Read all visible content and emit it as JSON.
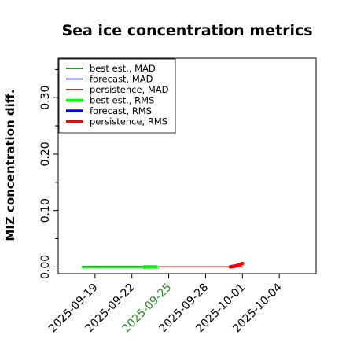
{
  "chart_data": {
    "type": "line",
    "title": "Sea ice concentration metrics",
    "ylabel": "MIZ concentration diff.",
    "xlabel": "",
    "xlim": [
      "2025-09-16",
      "2025-10-07"
    ],
    "ylim": [
      -0.012,
      0.37
    ],
    "y_ticks": [
      0.0,
      0.1,
      0.2,
      0.3
    ],
    "y_tick_labels": [
      "0.00",
      "0.10",
      "0.20",
      "0.30"
    ],
    "y_minor_ticks": [
      0.05,
      0.15,
      0.25,
      0.35
    ],
    "x_ticks": [
      "2025-09-19",
      "2025-09-22",
      "2025-09-25",
      "2025-09-28",
      "2025-10-01",
      "2025-10-04"
    ],
    "x_tick_colors": [
      "#000000",
      "#000000",
      "#228B22",
      "#000000",
      "#000000",
      "#000000"
    ],
    "grid": false,
    "legend_position": "top-left",
    "series": [
      {
        "name": "best est., MAD",
        "color": "#006400",
        "width": 1.5,
        "x": [
          "2025-09-18",
          "2025-09-20",
          "2025-09-22",
          "2025-09-24"
        ],
        "y": [
          0.0,
          0.0,
          0.0,
          0.0
        ]
      },
      {
        "name": "forecast,  MAD",
        "color": "#00008B",
        "width": 1.5,
        "x": [],
        "y": []
      },
      {
        "name": "persistence, MAD",
        "color": "#8B0000",
        "width": 1.5,
        "x": [
          "2025-09-24",
          "2025-09-27",
          "2025-09-30",
          "2025-10-01"
        ],
        "y": [
          0.0,
          0.0,
          0.0,
          0.0
        ]
      },
      {
        "name": "best est., RMS",
        "color": "#00FF00",
        "width": 3,
        "x": [
          "2025-09-18",
          "2025-09-20",
          "2025-09-22",
          "2025-09-23",
          "2025-09-24"
        ],
        "y": [
          0.0,
          0.0,
          0.0,
          0.0,
          0.0
        ]
      },
      {
        "name": "forecast,  RMS",
        "color": "#0000FF",
        "width": 3,
        "x": [],
        "y": []
      },
      {
        "name": "persistence, RMS",
        "color": "#FF0000",
        "width": 3,
        "x": [
          "2025-09-30",
          "2025-09-30.5",
          "2025-10-01"
        ],
        "y": [
          0.0,
          0.002,
          0.006
        ]
      }
    ],
    "highlight_segment": {
      "color": "#00FF00",
      "x": [
        "2025-09-23",
        "2025-09-24"
      ],
      "y": [
        0.0,
        0.0
      ]
    }
  }
}
